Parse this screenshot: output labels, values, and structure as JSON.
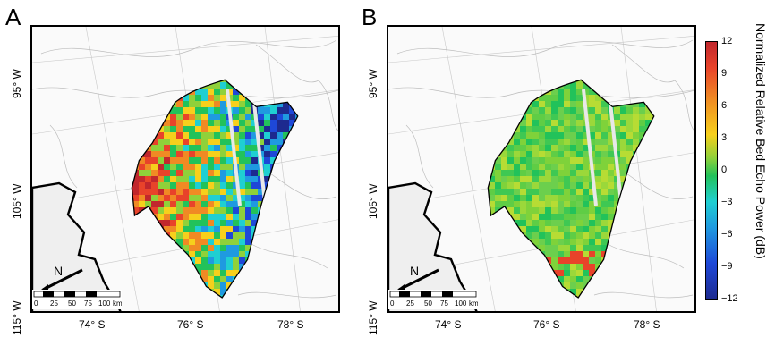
{
  "panels": [
    {
      "letter": "A",
      "lat_labels": [
        "95° W",
        "105° W",
        "115° W"
      ],
      "lon_labels": [
        "74° S",
        "76° S",
        "78° S"
      ],
      "north_label": "N",
      "scale": {
        "ticks": [
          "0",
          "25",
          "50",
          "75",
          "100"
        ],
        "unit": "km"
      },
      "fill_mode": "high-variance"
    },
    {
      "letter": "B",
      "lat_labels": [
        "95° W",
        "105° W",
        "115° W"
      ],
      "lon_labels": [
        "74° S",
        "76° S",
        "78° S"
      ],
      "north_label": "N",
      "scale": {
        "ticks": [
          "0",
          "25",
          "50",
          "75",
          "100"
        ],
        "unit": "km"
      },
      "fill_mode": "low-variance"
    }
  ],
  "colorbar": {
    "title": "Normalized Relative Bed Echo Power (dB)",
    "ticks": [
      "12",
      "9",
      "6",
      "3",
      "0",
      "−3",
      "−6",
      "−9",
      "−12"
    ],
    "range": [
      -12,
      12
    ],
    "colors": {
      "high": "#c1272d",
      "mid": "#22c25a",
      "low": "#1d2a8f"
    }
  }
}
